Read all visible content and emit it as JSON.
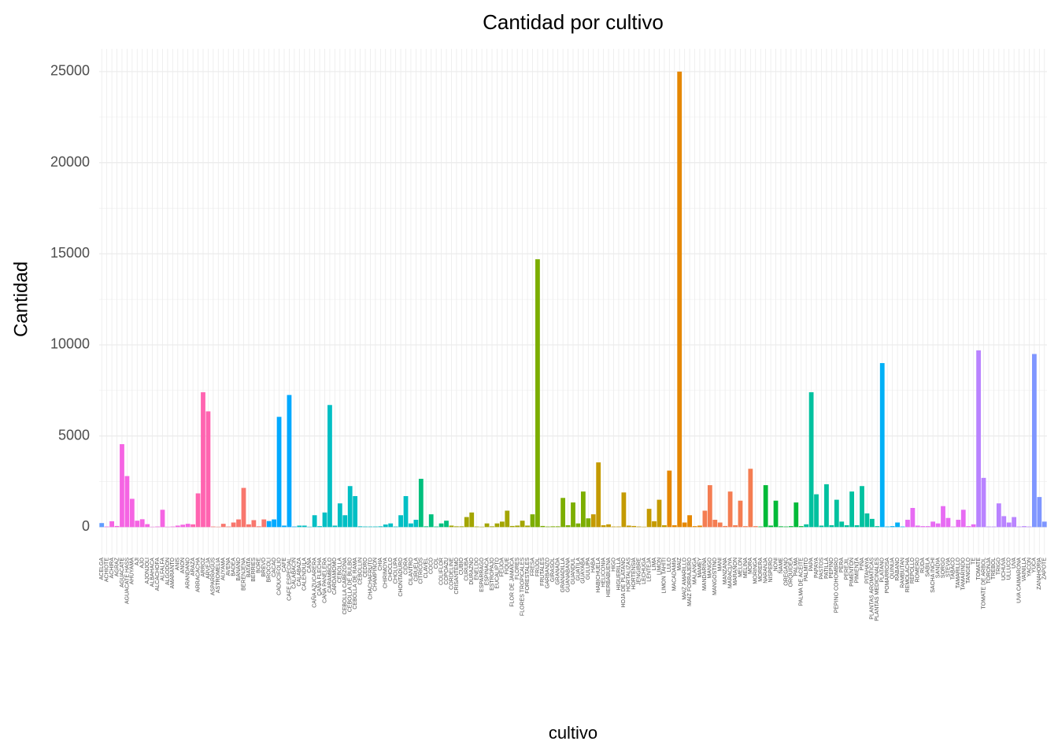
{
  "chart_data": {
    "type": "bar",
    "title": "Cantidad por cultivo",
    "x_label": "cultivo",
    "y_label": "Cantidad",
    "categories": [
      "ACELGA",
      "ACHIOTE",
      "ACHIRA",
      "AGRAZ",
      "AGUACATE",
      "AGUACATE HASS",
      "AHUYAMA",
      "AJI",
      "AJO",
      "AJONJOLI",
      "ALBAHACA",
      "ALCACHOFA",
      "ALFALFA",
      "ALGODON",
      "AMARANTO",
      "ANIS",
      "ANON",
      "ARANDANO",
      "ARAZA",
      "ARRACACHA",
      "ARROZ",
      "ARVEJA",
      "ASPARRAGUS",
      "ASTROMELIA",
      "AUYAMA",
      "AVENA",
      "BADEA",
      "BANANO",
      "BERENJENA",
      "BATATA",
      "BERRIES",
      "BORE",
      "BREVO",
      "BROCOLI",
      "CACAO",
      "CADUCIFOLIO",
      "CAFE",
      "CAFE ESPECIAL",
      "CALABACIN",
      "CALABAZA",
      "CALENDULA",
      "CAÑA",
      "CAÑA AZUCARERA",
      "CAÑA FLECHA",
      "CAÑA PANELERA",
      "CARAMBOLO",
      "CARDAMOMO",
      "CEBOLLA",
      "CEBOLLA CABEZONA",
      "CEBOLLA DE BULBO",
      "CEBOLLA DE RAMA",
      "CEBOLLIN",
      "CEDRO",
      "CHACHAFRUTO",
      "CHAMPIÑON",
      "CHIA",
      "CHIRIMOYA",
      "CHOCLO",
      "CHOLUPA",
      "CHONTADURO",
      "CIDRA",
      "CILANTRO",
      "CIRUELA",
      "CITRICOS",
      "CLAVEL",
      "COCO",
      "COL",
      "COLIFLOR",
      "COPOAZU",
      "CORDELINE",
      "CRISANTEMO",
      "CUBIO",
      "CURUBA",
      "DURAZNO",
      "ENELDO",
      "ESPARRAGO",
      "ESPINACA",
      "ESTROPAJO",
      "EUCALIPTO",
      "FEIJOA",
      "FIQUE",
      "FLOR DE JAMAICA",
      "FLORES",
      "FLORES TROPICALES",
      "FORESTALES",
      "FRESA",
      "FRIJOL",
      "FRUTALES",
      "GARBANZO",
      "GIRASOL",
      "GRANADA",
      "GRANADILLA",
      "GUANABANA",
      "GUANDUL",
      "GUATILA",
      "GUAYABA",
      "GULUPA",
      "HABA",
      "HABICHUELA",
      "HELICONIA",
      "HIERBABUENA",
      "HIGO",
      "HIGUERILLA",
      "HOJA DE PLATANO",
      "HORTALIZAS",
      "HORTENSIA",
      "JENGIBRE",
      "LECHUGA",
      "LENTEJA",
      "LIMA",
      "LIMON",
      "LIMON TAHITI",
      "LULO",
      "MACADAMIA",
      "MAIZ",
      "MAIZ AMARILLO",
      "MAIZ FORRAJERO",
      "MALANGA",
      "MAMEY",
      "MANDARINA",
      "MANGO",
      "MANGOSTINO",
      "MANI",
      "MANZANA",
      "MARACUYA",
      "MARAÑON",
      "MELON",
      "MELINA",
      "MORA",
      "MORINGA",
      "MORERA",
      "NARANJA",
      "NISPERO",
      "NONI",
      "ÑAME",
      "OREGANO",
      "ORQUIDEA",
      "PALMA",
      "PALMA DE ACEITE",
      "PALMITO",
      "PAPA",
      "PAPAYA",
      "PASTOS",
      "PATILLA",
      "PEPINO",
      "PEPINO COHOMBRO",
      "PERA",
      "PEREJIL",
      "PIMENTON",
      "PIMIENTA",
      "PIÑA",
      "PITAHAYA",
      "PLANTAS AROMATICAS",
      "PLANTAS MEDICINALES",
      "PLATANO",
      "POMARROSA",
      "QUINUA",
      "RABANO",
      "RAMBUTAN",
      "REMOLACHA",
      "REPOLLO",
      "ROMERO",
      "RUDA",
      "SABILA",
      "SACHA INCHI",
      "SANDIA",
      "SORGO",
      "STEVIA",
      "TABACO",
      "TAMARILLO",
      "TAMARINDO",
      "TANGELO",
      "TE",
      "TOMATE",
      "TOMATE DE ARBOL",
      "TORONJA",
      "TREBOL",
      "TRIGO",
      "UCHUVA",
      "ULLUCO",
      "UVA",
      "UVA CAIMARONA",
      "VAINILLA",
      "YACON",
      "YUCA",
      "ZANAHORIA",
      "ZAPOTE"
    ],
    "values": [
      220,
      30,
      320,
      60,
      4550,
      2800,
      1550,
      350,
      430,
      160,
      20,
      30,
      950,
      20,
      30,
      80,
      130,
      180,
      150,
      1850,
      7400,
      6350,
      30,
      20,
      180,
      30,
      250,
      420,
      2150,
      150,
      380,
      40,
      420,
      330,
      420,
      6050,
      80,
      7250,
      30,
      80,
      80,
      20,
      650,
      50,
      800,
      6700,
      80,
      1300,
      650,
      2250,
      1700,
      40,
      30,
      30,
      30,
      40,
      140,
      200,
      30,
      650,
      1700,
      200,
      400,
      2650,
      40,
      700,
      30,
      200,
      350,
      80,
      40,
      40,
      550,
      800,
      30,
      20,
      200,
      40,
      200,
      300,
      900,
      60,
      80,
      350,
      80,
      700,
      14700,
      60,
      30,
      40,
      40,
      1600,
      100,
      1350,
      200,
      1950,
      480,
      700,
      3550,
      100,
      150,
      30,
      30,
      1900,
      80,
      60,
      30,
      20,
      1000,
      320,
      1500,
      100,
      3100,
      100,
      25000,
      250,
      650,
      50,
      80,
      900,
      2300,
      400,
      250,
      60,
      1950,
      100,
      1450,
      50,
      3200,
      50,
      30,
      2300,
      80,
      1450,
      40,
      30,
      50,
      1350,
      50,
      150,
      7400,
      1800,
      80,
      2350,
      100,
      1500,
      300,
      100,
      1950,
      100,
      2250,
      750,
      450,
      50,
      9000,
      30,
      50,
      250,
      30,
      400,
      1050,
      80,
      50,
      50,
      300,
      200,
      1150,
      500,
      30,
      400,
      950,
      50,
      150,
      9700,
      2700,
      30,
      30,
      1300,
      600,
      250,
      550,
      30,
      50,
      30,
      9500,
      1650,
      300
    ],
    "colors": [
      "#619CFF",
      "#F564E3",
      "#F564E3",
      "#F564E3",
      "#F564E3",
      "#F564E3",
      "#F564E3",
      "#F564E3",
      "#F564E3",
      "#F564E3",
      "#F564E3",
      "#F564E3",
      "#F564E3",
      "#F564E3",
      "#F564E3",
      "#F564E3",
      "#F564E3",
      "#F564E3",
      "#FF64B0",
      "#FF64B0",
      "#FF64B0",
      "#FF64B0",
      "#F8766D",
      "#F8766D",
      "#F8766D",
      "#F8766D",
      "#F8766D",
      "#F8766D",
      "#F8766D",
      "#F8766D",
      "#F8766D",
      "#F8766D",
      "#F8766D",
      "#00A9FF",
      "#00A9FF",
      "#00A9FF",
      "#00A9FF",
      "#00A9FF",
      "#00A9FF",
      "#00BFC4",
      "#00BFC4",
      "#00BFC4",
      "#00BFC4",
      "#00BFC4",
      "#00BFC4",
      "#00BFC4",
      "#00BFC4",
      "#00BFC4",
      "#00BFC4",
      "#00BFC4",
      "#00BFC4",
      "#00BFC4",
      "#00BFC4",
      "#00BFC4",
      "#00BFC4",
      "#00BFC4",
      "#00BFC4",
      "#00BFC4",
      "#00BFC4",
      "#00BFC4",
      "#00BFC4",
      "#00BFC4",
      "#00BFC4",
      "#00BF7D",
      "#00BF7D",
      "#00BF7D",
      "#00BF7D",
      "#00BF7D",
      "#00BF7D",
      "#A3A500",
      "#A3A500",
      "#A3A500",
      "#A3A500",
      "#A3A500",
      "#A3A500",
      "#A3A500",
      "#A3A500",
      "#A3A500",
      "#A3A500",
      "#A3A500",
      "#A3A500",
      "#A3A500",
      "#A3A500",
      "#A3A500",
      "#A3A500",
      "#7CAE00",
      "#7CAE00",
      "#7CAE00",
      "#7CAE00",
      "#7CAE00",
      "#7CAE00",
      "#7CAE00",
      "#7CAE00",
      "#7CAE00",
      "#7CAE00",
      "#7CAE00",
      "#7CAE00",
      "#C49A00",
      "#C49A00",
      "#C49A00",
      "#C49A00",
      "#C49A00",
      "#C49A00",
      "#C49A00",
      "#C49A00",
      "#C49A00",
      "#C49A00",
      "#C49A00",
      "#C49A00",
      "#C49A00",
      "#C49A00",
      "#C49A00",
      "#E58700",
      "#E58700",
      "#E58700",
      "#E58700",
      "#E58700",
      "#E58700",
      "#E58700",
      "#F47D52",
      "#F47D52",
      "#F47D52",
      "#F47D52",
      "#F47D52",
      "#F47D52",
      "#F47D52",
      "#F47D52",
      "#F47D52",
      "#F47D52",
      "#F47D52",
      "#00BA38",
      "#00BA38",
      "#00BA38",
      "#00BA38",
      "#00BA38",
      "#00BA38",
      "#00BA38",
      "#00BA38",
      "#00BA38",
      "#00C19F",
      "#00C19F",
      "#00C19F",
      "#00C19F",
      "#00C19F",
      "#00C19F",
      "#00C19F",
      "#00C19F",
      "#00C19F",
      "#00C19F",
      "#00C19F",
      "#00C19F",
      "#00C19F",
      "#00C19F",
      "#00C19F",
      "#00B0F6",
      "#00B0F6",
      "#00B0F6",
      "#00B0F6",
      "#00B0F6",
      "#E76BF3",
      "#E76BF3",
      "#E76BF3",
      "#E76BF3",
      "#E76BF3",
      "#E76BF3",
      "#E76BF3",
      "#E76BF3",
      "#E76BF3",
      "#E76BF3",
      "#E76BF3",
      "#E76BF3",
      "#E76BF3",
      "#E76BF3",
      "#B983FF",
      "#B983FF",
      "#B983FF",
      "#B983FF",
      "#B983FF",
      "#B983FF",
      "#B983FF",
      "#B983FF",
      "#B983FF",
      "#B983FF",
      "#B983FF",
      "#7F96FF",
      "#7F96FF",
      "#7F96FF"
    ],
    "ylim": [
      -1500,
      26250
    ],
    "yticks": [
      0,
      5000,
      10000,
      15000,
      20000,
      25000
    ],
    "grid": true
  }
}
